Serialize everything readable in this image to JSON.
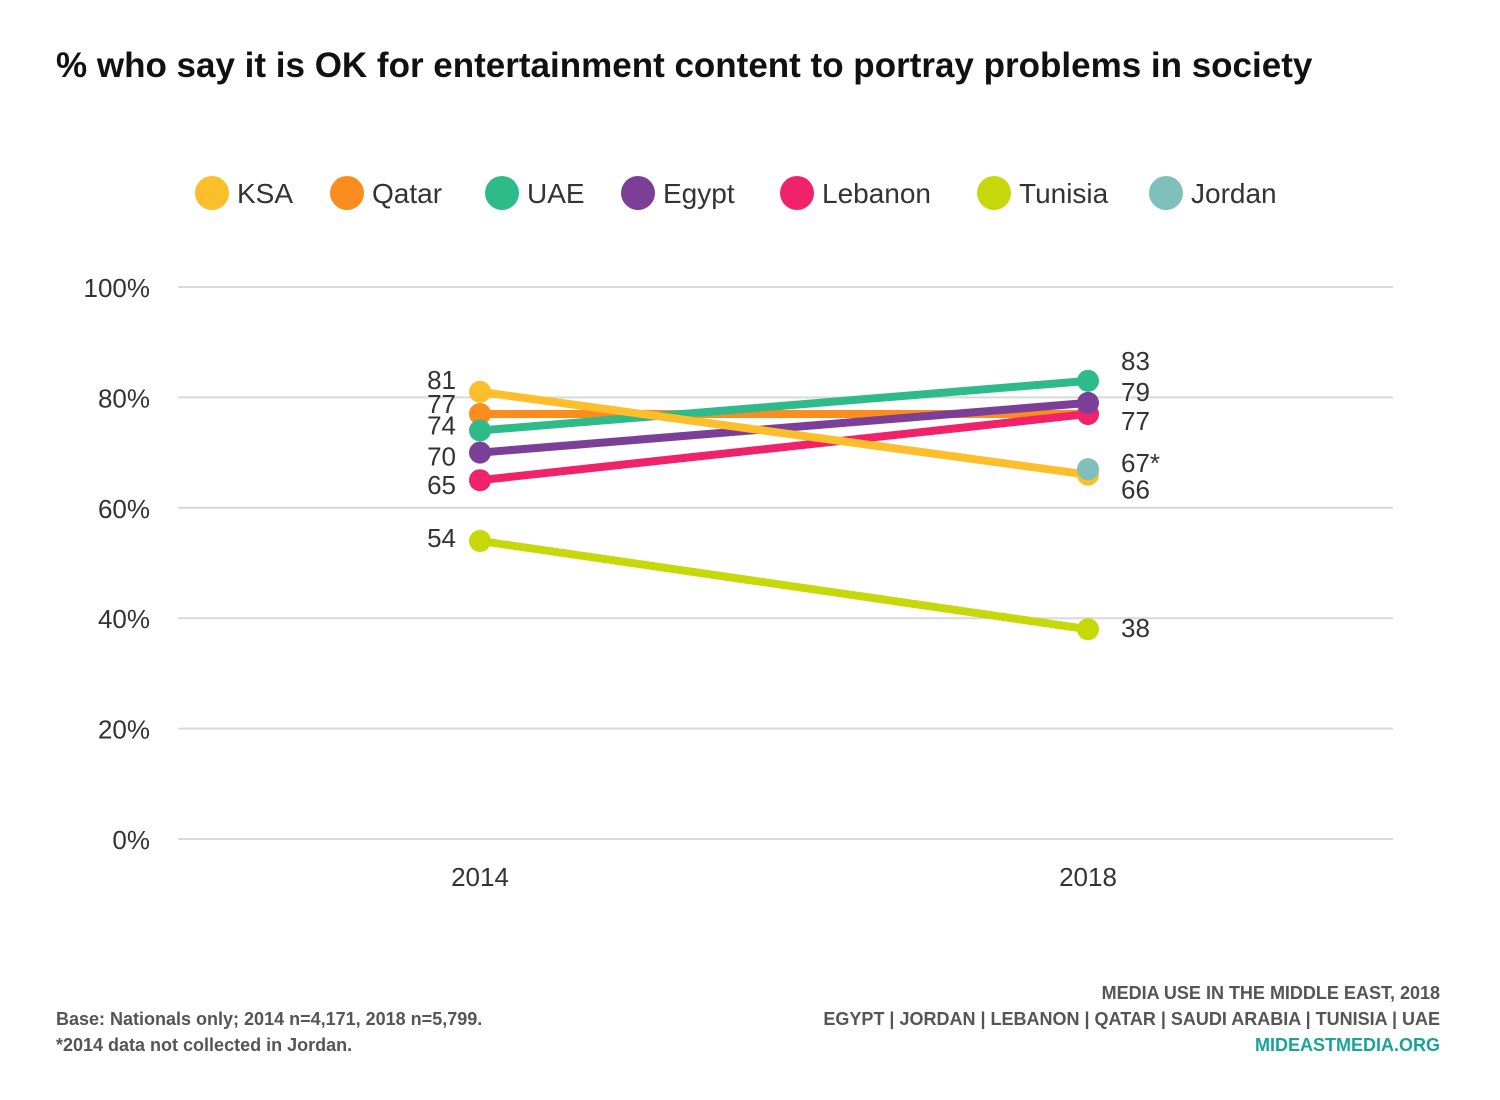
{
  "chart_data": {
    "type": "line",
    "title": "% who say it is OK for entertainment content to portray problems in society",
    "x": [
      "2014",
      "2018"
    ],
    "ylim": [
      0,
      100
    ],
    "yticks": [
      "0%",
      "20%",
      "40%",
      "60%",
      "80%",
      "100%"
    ],
    "grid": true,
    "legend_position": "top",
    "series": [
      {
        "name": "KSA",
        "color": "#fdbe2c",
        "values": [
          81,
          66
        ],
        "labels": [
          "81",
          "66"
        ]
      },
      {
        "name": "Qatar",
        "color": "#fb8c1e",
        "values": [
          77,
          77
        ],
        "labels": [
          "77",
          ""
        ]
      },
      {
        "name": "UAE",
        "color": "#2fba8a",
        "values": [
          74,
          83
        ],
        "labels": [
          "74",
          "83"
        ]
      },
      {
        "name": "Egypt",
        "color": "#7b3f98",
        "values": [
          70,
          79
        ],
        "labels": [
          "70",
          "79"
        ]
      },
      {
        "name": "Lebanon",
        "color": "#f0226a",
        "values": [
          65,
          77
        ],
        "labels": [
          "65",
          "77"
        ]
      },
      {
        "name": "Tunisia",
        "color": "#c6d80a",
        "values": [
          54,
          38
        ],
        "labels": [
          "54",
          "38"
        ]
      },
      {
        "name": "Jordan",
        "color": "#7fbfbc",
        "values": [
          null,
          67
        ],
        "labels": [
          "",
          "67*"
        ]
      }
    ]
  },
  "footer": {
    "base_note": "Base: Nationals only; 2014 n=4,171, 2018 n=5,799.",
    "jordan_note": "*2014 data not collected in Jordan.",
    "report_title": "MEDIA USE IN THE MIDDLE EAST, 2018",
    "countries": "EGYPT | JORDAN | LEBANON | QATAR | SAUDI ARABIA | TUNISIA | UAE",
    "site": "MIDEASTMEDIA.ORG"
  }
}
